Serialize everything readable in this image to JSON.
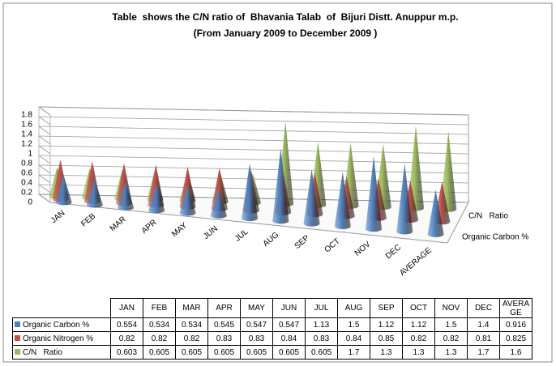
{
  "chart_data": {
    "type": "cone3d",
    "title": "Table  shows the C/N ratio of  Bhavania Talab  of  Bijuri Distt. Anuppur m.p.",
    "subtitle": "(From January 2009 to December 2009 )",
    "categories": [
      "JAN",
      "FEB",
      "MAR",
      "APR",
      "MAY",
      "JUN",
      "JUL",
      "AUG",
      "SEP",
      "OCT",
      "NOV",
      "DEC",
      "AVERAGE"
    ],
    "series": [
      {
        "name": "Organic Carbon %",
        "color": "#4f81bd",
        "values": [
          0.554,
          0.534,
          0.534,
          0.545,
          0.547,
          0.547,
          1.13,
          1.5,
          1.12,
          1.12,
          1.5,
          1.4,
          0.916
        ]
      },
      {
        "name": "Organic Nitrogen %",
        "color": "#c0504d",
        "values": [
          0.82,
          0.82,
          0.82,
          0.83,
          0.83,
          0.84,
          0.83,
          0.84,
          0.85,
          0.82,
          0.82,
          0.81,
          0.825
        ]
      },
      {
        "name": "C/N   Ratio",
        "color": "#9bbb59",
        "values": [
          0.603,
          0.605,
          0.605,
          0.605,
          0.605,
          0.605,
          0.605,
          1.7,
          1.3,
          1.3,
          1.3,
          1.7,
          1.6
        ]
      }
    ],
    "ylim": [
      0,
      1.8
    ],
    "yticks": [
      0,
      0.2,
      0.4,
      0.6,
      0.8,
      1,
      1.2,
      1.4,
      1.6,
      1.8
    ],
    "grid": true
  }
}
